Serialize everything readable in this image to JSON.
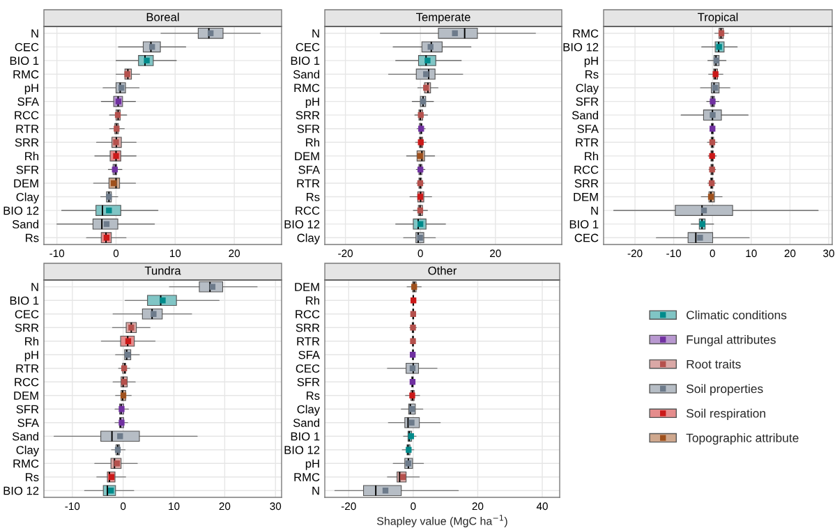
{
  "chart_data": [
    {
      "type": "box",
      "title": "Boreal",
      "orientation": "horizontal",
      "marker": "square",
      "grid": true,
      "legend": "bottom right",
      "categories": [
        "N",
        "CEC",
        "BIO 1",
        "RMC",
        "pH",
        "SFA",
        "RCC",
        "RTR",
        "SRR",
        "Rh",
        "SFR",
        "DEM",
        "Clay",
        "BIO 12",
        "Sand",
        "Rs"
      ],
      "xlim": [
        -12.2,
        28
      ],
      "xticks": [
        -10,
        0,
        10,
        20
      ],
      "series": [
        {
          "name": "Climatic conditions",
          "color": "#80c5c5",
          "boxes": [
            null,
            null,
            {
              "low": 0,
              "q1": 3.8,
              "median": 4.9,
              "q3": 6.3,
              "high": 10.2,
              "mean": 5.2
            },
            null,
            null,
            null,
            null,
            null,
            null,
            null,
            null,
            null,
            null,
            {
              "low": -9.2,
              "q1": -3.4,
              "median": -2.3,
              "q3": 0.8,
              "high": 7.1,
              "mean": -1.2
            },
            null,
            null
          ]
        },
        {
          "name": "Fungal attributes",
          "color": "#b898d0",
          "boxes": [
            null,
            null,
            null,
            null,
            null,
            {
              "low": -2.5,
              "q1": -0.4,
              "median": 0.35,
              "q3": 1.1,
              "high": 3.3,
              "mean": 0.4
            },
            null,
            null,
            null,
            null,
            {
              "low": -1.3,
              "q1": -0.5,
              "median": -0.1,
              "q3": 0.1,
              "high": 1.0,
              "mean": -0.2
            },
            null,
            null,
            null,
            null,
            null
          ]
        },
        {
          "name": "Root traits",
          "color": "#daa8a6",
          "boxes": [
            null,
            null,
            null,
            {
              "low": 0,
              "q1": 1.5,
              "median": 2.0,
              "q3": 2.6,
              "high": 4.0,
              "mean": 1.9
            },
            null,
            null,
            {
              "low": -1.1,
              "q1": 0,
              "median": 0.35,
              "q3": 0.7,
              "high": 1.8,
              "mean": 0.3
            },
            {
              "low": -1.1,
              "q1": -0.2,
              "median": 0.1,
              "q3": 0.4,
              "high": 1.4,
              "mean": 0.1
            },
            {
              "low": -3.3,
              "q1": -0.7,
              "median": 0.05,
              "q3": 0.9,
              "high": 3.4,
              "mean": 0
            },
            null,
            null,
            null,
            null,
            null,
            null,
            null
          ]
        },
        {
          "name": "Soil properties",
          "color": "#b6bdc5",
          "boxes": [
            {
              "low": 7.6,
              "q1": 13.9,
              "median": 15.7,
              "q3": 18.1,
              "high": 24.4,
              "mean": 16.0
            },
            {
              "low": 0.4,
              "q1": 4.6,
              "median": 5.9,
              "q3": 7.5,
              "high": 11.8,
              "mean": 6.1
            },
            null,
            null,
            {
              "low": -2.2,
              "q1": 0,
              "median": 0.7,
              "q3": 1.6,
              "high": 3.9,
              "mean": 0.9
            },
            null,
            null,
            null,
            null,
            null,
            null,
            null,
            {
              "low": -2.6,
              "q1": -1.6,
              "median": -1.2,
              "q3": -0.8,
              "high": 0.3,
              "mean": -1.2
            },
            null,
            {
              "low": -10,
              "q1": -3.9,
              "median": -2.4,
              "q3": 0.3,
              "high": 6.5,
              "mean": -1.6
            },
            null
          ]
        },
        {
          "name": "Soil respiration",
          "color": "#e58c8c",
          "boxes": [
            null,
            null,
            null,
            null,
            null,
            null,
            null,
            null,
            null,
            {
              "low": -3.6,
              "q1": -1.0,
              "median": 0,
              "q3": 0.8,
              "high": 3.4,
              "mean": 0
            },
            null,
            null,
            null,
            null,
            null,
            {
              "low": -5,
              "q1": -2.5,
              "median": -1.7,
              "q3": -0.8,
              "high": 1.7,
              "mean": -1.6
            }
          ]
        },
        {
          "name": "Topographic attribute",
          "color": "#cfa88e",
          "boxes": [
            null,
            null,
            null,
            null,
            null,
            null,
            null,
            null,
            null,
            null,
            null,
            {
              "low": -3.8,
              "q1": -1.2,
              "median": 0,
              "q3": 0.6,
              "high": 3.3,
              "mean": -0.4
            },
            null,
            null,
            null,
            null
          ]
        }
      ]
    },
    {
      "type": "box",
      "title": "Temperate",
      "orientation": "horizontal",
      "marker": "square",
      "grid": true,
      "categories": [
        "N",
        "CEC",
        "BIO 1",
        "Sand",
        "RMC",
        "pH",
        "SRR",
        "SFR",
        "Rh",
        "DEM",
        "SFA",
        "RTR",
        "Rs",
        "RCC",
        "BIO 12",
        "Clay"
      ],
      "xlim": [
        -25.5,
        37.7
      ],
      "xticks": [
        -20,
        0,
        20
      ],
      "series": [
        {
          "color": "#80c5c5",
          "boxes": [
            null,
            null,
            {
              "low": -6.6,
              "q1": -0.5,
              "median": 1.5,
              "q3": 4.1,
              "high": 10.9,
              "mean": 1.9
            },
            null,
            null,
            null,
            null,
            null,
            null,
            null,
            null,
            null,
            null,
            null,
            {
              "low": -6.6,
              "q1": -1.9,
              "median": -0.6,
              "q3": 1.5,
              "high": 6.7,
              "mean": 0
            },
            null
          ]
        },
        {
          "color": "#b898d0",
          "boxes": [
            null,
            null,
            null,
            null,
            null,
            null,
            null,
            {
              "low": -0.9,
              "q1": -0.25,
              "median": 0.2,
              "q3": 0.4,
              "high": 1.3,
              "mean": 0.2
            },
            null,
            null,
            {
              "low": -1.1,
              "q1": -0.4,
              "median": 0,
              "q3": 0.4,
              "high": 1.2,
              "mean": 0
            },
            null,
            null,
            null,
            null,
            null
          ]
        },
        {
          "color": "#daa8a6",
          "boxes": [
            null,
            null,
            null,
            null,
            {
              "low": -0.7,
              "q1": 1.1,
              "median": 2.0,
              "q3": 2.7,
              "high": 4.7,
              "mean": 1.5
            },
            null,
            {
              "low": -1.5,
              "q1": -0.4,
              "median": 0,
              "q3": 0.6,
              "high": 1.9,
              "mean": 0.1
            },
            null,
            null,
            null,
            null,
            {
              "low": -1.05,
              "q1": -0.4,
              "median": -0.05,
              "q3": 0.3,
              "high": 1.0,
              "mean": -0.05
            },
            null,
            {
              "low": -1.9,
              "q1": -0.55,
              "median": -0.1,
              "q3": 0.55,
              "high": 1.9,
              "mean": -0.05
            },
            null,
            null
          ]
        },
        {
          "color": "#b6bdc5",
          "boxes": [
            {
              "low": -10.7,
              "q1": 4.8,
              "median": 11.8,
              "q3": 15.2,
              "high": 30.7,
              "mean": 9.2
            },
            {
              "low": -7.3,
              "q1": 0.4,
              "median": 2.9,
              "q3": 5.8,
              "high": 13.5,
              "mean": 2.7
            },
            null,
            {
              "low": -8.5,
              "q1": -1.1,
              "median": 2.2,
              "q3": 3.9,
              "high": 11.3,
              "mean": 1.5
            },
            null,
            {
              "low": -2.2,
              "q1": 0,
              "median": 0.7,
              "q3": 1.4,
              "high": 3.5,
              "mean": 0.7
            },
            null,
            null,
            null,
            null,
            null,
            null,
            null,
            null,
            null,
            {
              "low": -4.5,
              "q1": -1.2,
              "median": -0.6,
              "q3": 0.9,
              "high": 4.0,
              "mean": -0.1
            }
          ]
        },
        {
          "color": "#e58c8c",
          "boxes": [
            null,
            null,
            null,
            null,
            null,
            null,
            null,
            null,
            {
              "low": -1.3,
              "q1": -0.3,
              "median": 0.1,
              "q3": 0.6,
              "high": 1.5,
              "mean": 0.1
            },
            null,
            null,
            null,
            {
              "low": -2.8,
              "q1": -0.7,
              "median": 0.05,
              "q3": 0.9,
              "high": 3.0,
              "mean": -0.05
            },
            null,
            null,
            null
          ]
        },
        {
          "color": "#cfa88e",
          "boxes": [
            null,
            null,
            null,
            null,
            null,
            null,
            null,
            null,
            null,
            {
              "low": -3.7,
              "q1": -0.9,
              "median": 0.4,
              "q3": 1.1,
              "high": 3.8,
              "mean": -0.1
            },
            null,
            null,
            null,
            null,
            null,
            null
          ]
        }
      ]
    },
    {
      "type": "box",
      "title": "Tropical",
      "orientation": "horizontal",
      "marker": "square",
      "grid": true,
      "categories": [
        "RMC",
        "BIO 12",
        "pH",
        "Rs",
        "Clay",
        "SFR",
        "Sand",
        "SFA",
        "RTR",
        "Rh",
        "RCC",
        "SRR",
        "DEM",
        "N",
        "BIO 1",
        "CEC"
      ],
      "xlim": [
        -28.1,
        30.9
      ],
      "xticks": [
        -20,
        -10,
        0,
        10,
        20,
        30
      ],
      "series": [
        {
          "color": "#80c5c5",
          "boxes": [
            null,
            {
              "low": -2.8,
              "q1": 0.7,
              "median": 1.6,
              "q3": 3.0,
              "high": 6.4,
              "mean": 1.7
            },
            null,
            null,
            null,
            null,
            null,
            null,
            null,
            null,
            null,
            null,
            null,
            null,
            {
              "low": -5.5,
              "q1": -3.4,
              "median": -2.7,
              "q3": -1.9,
              "high": 0.3,
              "mean": -2.6
            },
            null
          ]
        },
        {
          "color": "#b898d0",
          "boxes": [
            null,
            null,
            null,
            null,
            null,
            {
              "low": -1.5,
              "q1": -0.4,
              "median": 0.05,
              "q3": 0.5,
              "high": 1.7,
              "mean": 0.05
            },
            null,
            {
              "low": -0.6,
              "q1": -0.3,
              "median": -0.05,
              "q3": 0.25,
              "high": 0.6,
              "mean": 0
            },
            null,
            null,
            null,
            null,
            null,
            null,
            null,
            null
          ]
        },
        {
          "color": "#daa8a6",
          "boxes": [
            {
              "low": 0.6,
              "q1": 1.7,
              "median": 2.2,
              "q3": 2.8,
              "high": 4.1,
              "mean": 2.3
            },
            null,
            null,
            null,
            null,
            null,
            null,
            null,
            {
              "low": -1.3,
              "q1": -0.35,
              "median": -0.05,
              "q3": 0.3,
              "high": 1.2,
              "mean": -0.05
            },
            null,
            {
              "low": -0.9,
              "q1": -0.4,
              "median": -0.1,
              "q3": 0.2,
              "high": 0.8,
              "mean": -0.1
            },
            {
              "low": -1.2,
              "q1": -0.5,
              "median": -0.2,
              "q3": 0.1,
              "high": 0.8,
              "mean": -0.2
            },
            null,
            null,
            null,
            null
          ]
        },
        {
          "color": "#b6bdc5",
          "boxes": [
            null,
            null,
            {
              "low": -1.2,
              "q1": 0.4,
              "median": 0.9,
              "q3": 1.7,
              "high": 3.5,
              "mean": 1.0
            },
            null,
            {
              "low": -3.1,
              "q1": -0.3,
              "median": 0.4,
              "q3": 1.7,
              "high": 4.5,
              "mean": 0.7
            },
            null,
            {
              "low": -8.1,
              "q1": -2.3,
              "median": 0,
              "q3": 2.3,
              "high": 9.2,
              "mean": 0.05
            },
            null,
            null,
            null,
            null,
            null,
            null,
            {
              "low": -25.5,
              "q1": -9.6,
              "median": -2.7,
              "q3": 5.2,
              "high": 27.3,
              "mean": -2.2
            },
            null,
            {
              "low": -14.5,
              "q1": -6.3,
              "median": -4.3,
              "q3": 0.05,
              "high": 9.5,
              "mean": -3.2
            }
          ]
        },
        {
          "color": "#e58c8c",
          "boxes": [
            null,
            null,
            null,
            {
              "low": -1.0,
              "q1": 0.3,
              "median": 0.7,
              "q3": 1.3,
              "high": 2.7,
              "mean": 0.8
            },
            null,
            null,
            null,
            null,
            null,
            {
              "low": -1.1,
              "q1": -0.4,
              "median": -0.1,
              "q3": 0.2,
              "high": 1.0,
              "mean": -0.1
            },
            null,
            null,
            null,
            null,
            null,
            null
          ]
        },
        {
          "color": "#cfa88e",
          "boxes": [
            null,
            null,
            null,
            null,
            null,
            null,
            null,
            null,
            null,
            null,
            null,
            null,
            {
              "low": -2.9,
              "q1": -0.9,
              "median": -0.4,
              "q3": 0.5,
              "high": 2.5,
              "mean": -0.4
            },
            null,
            null,
            null
          ]
        }
      ]
    },
    {
      "type": "box",
      "title": "Tundra",
      "orientation": "horizontal",
      "marker": "square",
      "grid": true,
      "categories": [
        "N",
        "BIO 1",
        "CEC",
        "SRR",
        "Rh",
        "pH",
        "RTR",
        "RCC",
        "DEM",
        "SFR",
        "SFA",
        "Sand",
        "Clay",
        "RMC",
        "Rs",
        "BIO 12"
      ],
      "xlim": [
        -15.6,
        31.2
      ],
      "xticks": [
        -10,
        0,
        10,
        20,
        30
      ],
      "series": [
        {
          "color": "#80c5c5",
          "boxes": [
            null,
            {
              "low": 0.4,
              "q1": 4.8,
              "median": 7.4,
              "q3": 10.5,
              "high": 18.9,
              "mean": 7.8
            },
            null,
            null,
            null,
            null,
            null,
            null,
            null,
            null,
            null,
            null,
            null,
            null,
            null,
            {
              "low": -7.6,
              "q1": -3.9,
              "median": -3.1,
              "q3": -1.5,
              "high": 2.1,
              "mean": -2.4
            }
          ]
        },
        {
          "color": "#b898d0",
          "boxes": [
            null,
            null,
            null,
            null,
            null,
            null,
            null,
            null,
            null,
            {
              "low": -1.6,
              "q1": -0.7,
              "median": -0.4,
              "q3": 0.1,
              "high": 1.05,
              "mean": -0.3
            },
            {
              "low": -1.6,
              "q1": -0.7,
              "median": -0.5,
              "q3": 0.1,
              "high": 0.9,
              "mean": -0.3
            },
            null,
            null,
            null,
            null,
            null
          ]
        },
        {
          "color": "#daa8a6",
          "boxes": [
            null,
            null,
            null,
            {
              "low": -2.1,
              "q1": 0.6,
              "median": 1.6,
              "q3": 2.6,
              "high": 5.3,
              "mean": 1.6
            },
            null,
            null,
            {
              "low": -0.9,
              "q1": -0.1,
              "median": 0.3,
              "q3": 0.5,
              "high": 1.3,
              "mean": 0.2
            },
            {
              "low": -2.0,
              "q1": -0.4,
              "median": 0,
              "q3": 0.8,
              "high": 2.4,
              "mean": 0.2
            },
            null,
            null,
            null,
            null,
            null,
            {
              "low": -5.6,
              "q1": -2.4,
              "median": -1.7,
              "q3": -0.4,
              "high": 2.8,
              "mean": -1.2
            },
            null,
            null
          ]
        },
        {
          "color": "#b6bdc5",
          "boxes": [
            {
              "low": 9.1,
              "q1": 15.0,
              "median": 17.1,
              "q3": 19.6,
              "high": 26.4,
              "mean": 17.6
            },
            null,
            {
              "low": -2.0,
              "q1": 3.8,
              "median": 5.7,
              "q3": 7.7,
              "high": 13.5,
              "mean": 6.0
            },
            null,
            null,
            {
              "low": -1.5,
              "q1": 0.3,
              "median": 0.7,
              "q3": 1.5,
              "high": 3.2,
              "mean": 0.9
            },
            null,
            null,
            null,
            null,
            null,
            {
              "low": -13.6,
              "q1": -4.4,
              "median": -2.2,
              "q3": 3.2,
              "high": 14.6,
              "mean": -0.6
            },
            {
              "low": -2.3,
              "q1": -1.4,
              "median": -1.05,
              "q3": -0.7,
              "high": 0.4,
              "mean": -1.05
            },
            null,
            null,
            null
          ]
        },
        {
          "color": "#e58c8c",
          "boxes": [
            null,
            null,
            null,
            null,
            {
              "low": -4.3,
              "q1": -0.5,
              "median": 0.9,
              "q3": 2.2,
              "high": 6.3,
              "mean": 1.0
            },
            null,
            null,
            null,
            null,
            null,
            null,
            null,
            null,
            null,
            {
              "low": -5.2,
              "q1": -3.1,
              "median": -2.7,
              "q3": -1.6,
              "high": 0.5,
              "mean": -2.3
            },
            null
          ]
        },
        {
          "color": "#cfa88e",
          "boxes": [
            null,
            null,
            null,
            null,
            null,
            null,
            null,
            null,
            {
              "low": -1.5,
              "q1": -0.4,
              "median": -0.1,
              "q3": 0.5,
              "high": 1.6,
              "mean": 0.05
            },
            null,
            null,
            null,
            null,
            null,
            null,
            null
          ]
        }
      ]
    },
    {
      "type": "box",
      "title": "Other",
      "orientation": "horizontal",
      "marker": "square",
      "grid": true,
      "xlabel": "Shapley value (MgC ha$^{−1}$)",
      "categories": [
        "DEM",
        "Rh",
        "RCC",
        "SRR",
        "RTR",
        "SFA",
        "CEC",
        "SFR",
        "Rs",
        "Clay",
        "Sand",
        "BIO 1",
        "BIO 12",
        "pH",
        "RMC",
        "N"
      ],
      "xlim": [
        -27.4,
        45.4
      ],
      "xticks": [
        -20,
        0,
        20,
        40
      ],
      "series": [
        {
          "color": "#80c5c5",
          "boxes": [
            null,
            null,
            null,
            null,
            null,
            null,
            null,
            null,
            null,
            null,
            null,
            {
              "low": -3.0,
              "q1": -1.6,
              "median": -1.2,
              "q3": -0.5,
              "high": 0.9,
              "mean": -0.65
            },
            {
              "low": -3.4,
              "q1": -1.9,
              "median": -1.6,
              "q3": -1.0,
              "high": 0.2,
              "mean": -1.4
            },
            null,
            null,
            null
          ]
        },
        {
          "color": "#b898d0",
          "boxes": [
            null,
            null,
            null,
            null,
            null,
            {
              "low": -0.4,
              "q1": -0.2,
              "median": -0.07,
              "q3": 0.07,
              "high": 0.3,
              "mean": -0.15
            },
            null,
            {
              "low": -0.9,
              "q1": -0.5,
              "median": -0.2,
              "q3": 0,
              "high": 0.4,
              "mean": -0.2
            },
            null,
            null,
            null,
            null,
            null,
            null,
            null,
            null
          ]
        },
        {
          "color": "#daa8a6",
          "boxes": [
            null,
            null,
            {
              "low": -0.4,
              "q1": -0.15,
              "median": 0,
              "q3": 0.15,
              "high": 0.4,
              "mean": 0
            },
            {
              "low": -1.1,
              "q1": -0.3,
              "median": -0.07,
              "q3": 0.15,
              "high": 1.0,
              "mean": -0.07
            },
            {
              "low": -0.6,
              "q1": -0.2,
              "median": -0.07,
              "q3": 0.07,
              "high": 0.5,
              "mean": -0.07
            },
            null,
            null,
            null,
            null,
            null,
            null,
            null,
            null,
            null,
            {
              "low": -8.0,
              "q1": -5.0,
              "median": -4.2,
              "q3": -2.2,
              "high": 1.9,
              "mean": -3.2
            },
            null
          ]
        },
        {
          "color": "#b6bdc5",
          "boxes": [
            null,
            null,
            null,
            null,
            null,
            null,
            {
              "low": -8.0,
              "q1": -2.2,
              "median": 0,
              "q3": 1.65,
              "high": 7.4,
              "mean": -0.2
            },
            null,
            null,
            {
              "low": -3.7,
              "q1": -1.4,
              "median": -0.9,
              "q3": 0.65,
              "high": 3.0,
              "mean": -0.35
            },
            {
              "low": -7.7,
              "q1": -2.6,
              "median": -1.6,
              "q3": 1.9,
              "high": 8.4,
              "mean": -0.5
            },
            null,
            null,
            {
              "low": -6.2,
              "q1": -2.6,
              "median": -1.5,
              "q3": -0.2,
              "high": 3.2,
              "mean": -1.5
            },
            null,
            {
              "low": -24.3,
              "q1": -15.4,
              "median": -11.6,
              "q3": -3.7,
              "high": 14.0,
              "mean": -8.6
            }
          ]
        },
        {
          "color": "#e58c8c",
          "boxes": [
            null,
            {
              "low": -0.15,
              "q1": -0.07,
              "median": 0,
              "q3": 0.15,
              "high": 0.3,
              "mean": 0.07
            },
            null,
            null,
            null,
            null,
            null,
            null,
            {
              "low": -2.4,
              "q1": -0.7,
              "median": -0.2,
              "q3": 0.3,
              "high": 2.0,
              "mean": -0.3
            },
            null,
            null,
            null,
            null,
            null,
            null,
            null
          ]
        },
        {
          "color": "#cfa88e",
          "boxes": [
            {
              "low": -1.9,
              "q1": -0.2,
              "median": 0.3,
              "q3": 0.9,
              "high": 2.5,
              "mean": 0.3
            },
            null,
            null,
            null,
            null,
            null,
            null,
            null,
            null,
            null,
            null,
            null,
            null,
            null,
            null,
            null
          ]
        }
      ]
    }
  ]
}
